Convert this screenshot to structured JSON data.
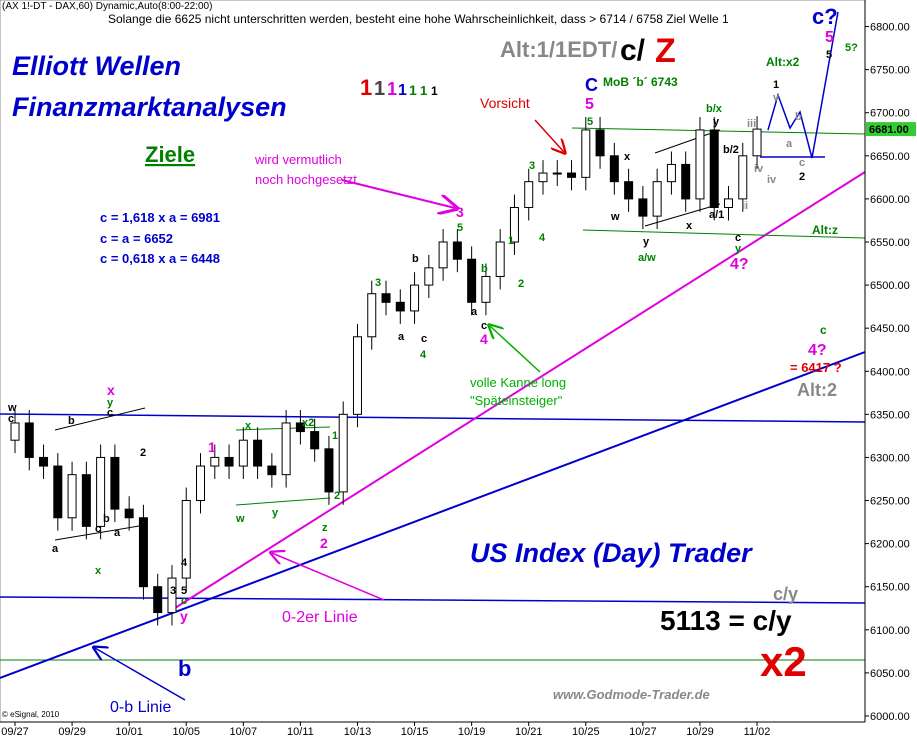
{
  "chart_data": {
    "type": "candlestick",
    "categories": [
      "09/27",
      null,
      null,
      null,
      "09/29",
      null,
      null,
      null,
      "10/01",
      null,
      null,
      null,
      "10/05",
      null,
      null,
      null,
      "10/07",
      null,
      null,
      null,
      "10/11",
      null,
      null,
      null,
      "10/13",
      null,
      null,
      null,
      "10/15",
      null,
      null,
      null,
      "10/19",
      null,
      null,
      null,
      "10/21",
      null,
      null,
      null,
      "10/25",
      null,
      null,
      null,
      "10/27",
      null,
      null,
      null,
      "10/29",
      null,
      null,
      null,
      "11/02"
    ],
    "open": [
      6320,
      6340,
      6300,
      6290,
      6230,
      6280,
      6220,
      6300,
      6240,
      6230,
      6150,
      6120,
      6160,
      6250,
      6290,
      6300,
      6290,
      6320,
      6290,
      6280,
      6340,
      6330,
      6310,
      6260,
      6350,
      6440,
      6490,
      6480,
      6470,
      6500,
      6520,
      6550,
      6530,
      6480,
      6510,
      6550,
      6590,
      6620,
      6630,
      6630,
      6625,
      6680,
      6650,
      6620,
      6600,
      6580,
      6620,
      6640,
      6600,
      6680,
      6590,
      6600,
      6650
    ],
    "high": [
      6355,
      6355,
      6315,
      6305,
      6295,
      6295,
      6315,
      6315,
      6255,
      6245,
      6165,
      6175,
      6265,
      6305,
      6315,
      6315,
      6335,
      6335,
      6305,
      6355,
      6355,
      6345,
      6325,
      6365,
      6455,
      6505,
      6505,
      6495,
      6515,
      6535,
      6565,
      6565,
      6545,
      6525,
      6565,
      6605,
      6635,
      6645,
      6645,
      6645,
      6695,
      6695,
      6665,
      6635,
      6615,
      6635,
      6655,
      6655,
      6695,
      6695,
      6615,
      6665,
      6696
    ],
    "low": [
      6305,
      6285,
      6275,
      6215,
      6215,
      6205,
      6205,
      6225,
      6215,
      6135,
      6105,
      6105,
      6145,
      6235,
      6275,
      6275,
      6275,
      6275,
      6265,
      6265,
      6315,
      6295,
      6245,
      6245,
      6335,
      6425,
      6465,
      6455,
      6455,
      6485,
      6505,
      6515,
      6465,
      6465,
      6495,
      6535,
      6575,
      6605,
      6615,
      6610,
      6610,
      6635,
      6605,
      6585,
      6565,
      6565,
      6605,
      6585,
      6585,
      6575,
      6575,
      6585,
      6635
    ],
    "close": [
      6340,
      6300,
      6290,
      6230,
      6280,
      6220,
      6300,
      6240,
      6230,
      6150,
      6120,
      6160,
      6250,
      6290,
      6300,
      6290,
      6320,
      6290,
      6280,
      6340,
      6330,
      6310,
      6260,
      6350,
      6440,
      6490,
      6480,
      6470,
      6500,
      6520,
      6550,
      6530,
      6480,
      6510,
      6550,
      6590,
      6620,
      6630,
      6630,
      6625,
      6680,
      6650,
      6620,
      6600,
      6580,
      6620,
      6640,
      6600,
      6680,
      6590,
      6600,
      6650,
      6681
    ],
    "ylim": [
      5993,
      6825
    ],
    "yticks": [
      {
        "value": 6000,
        "label": "6000.00"
      },
      {
        "value": 6050,
        "label": "6050.00"
      },
      {
        "value": 6100,
        "label": "6100.00"
      },
      {
        "value": 6150,
        "label": "6150.00"
      },
      {
        "value": 6200,
        "label": "6200.00"
      },
      {
        "value": 6250,
        "label": "6250.00"
      },
      {
        "value": 6300,
        "label": "6300.00"
      },
      {
        "value": 6350,
        "label": "6350.00"
      },
      {
        "value": 6400,
        "label": "6400.00"
      },
      {
        "value": 6450,
        "label": "6450.00"
      },
      {
        "value": 6500,
        "label": "6500.00"
      },
      {
        "value": 6550,
        "label": "6550.00"
      },
      {
        "value": 6600,
        "label": "6600.00"
      },
      {
        "value": 6650,
        "label": "6650.00"
      },
      {
        "value": 6700,
        "label": "6700.00"
      },
      {
        "value": 6750,
        "label": "6750.00"
      },
      {
        "value": 6800,
        "label": "6800.00"
      }
    ],
    "last": {
      "value": 6681,
      "label": "6681.00"
    },
    "up_color": "#ffffff",
    "down_color": "#000000",
    "annotations": [
      "(AX 1!-DT - DAX,60) Dynamic,Auto(8:00-22:00)",
      "Solange die 6625 nicht unterschritten werden, besteht eine hohe Wahrscheinlichkeit, dass > 6714 / 6758 Ziel Welle 1",
      "Elliott Wellen",
      "Finanzmarktanalysen",
      "Ziele",
      "c = 1,618 x a = 6981",
      "c = a = 6652",
      "c = 0,618 x a = 6448",
      "1",
      "1",
      "1",
      "1",
      "1",
      "1",
      "1",
      "Alt:1/1EDT/",
      "c/",
      "Z",
      "MoB ´b´ 6743",
      "Vorsicht",
      "wird vermutlich",
      "noch hochgesetzt",
      "volle Kanne long",
      "\"Späteinsteiger\"",
      "US Index (Day) Trader",
      "c/y",
      "5113 = c/y",
      "x2",
      "0-2er Linie",
      "0-b Linie",
      "www.Godmode-Trader.de",
      "© eSignal, 2010",
      "Alt:z",
      "Alt:x2",
      "Alt:2",
      "= 6417 ?",
      "4?",
      "c",
      "c?",
      "5",
      "5",
      "5?",
      "b",
      "w",
      "c",
      "x",
      "y",
      "c",
      "b",
      "2",
      "a",
      "c",
      "x",
      "b",
      "a",
      "1",
      "x",
      "x2",
      "1",
      "w",
      "y",
      "2",
      "z",
      "2",
      "3",
      "b",
      "a",
      "c",
      "4",
      "3",
      "5",
      "b",
      "a",
      "c",
      "4",
      "1",
      "2",
      "3",
      "4",
      "C",
      "5",
      "5",
      "x",
      "w",
      "y",
      "a/w",
      "x",
      "b/x",
      "y",
      "b/2",
      "a/1",
      "c",
      "y",
      "4?",
      "ii",
      "iii",
      "iv",
      "iv",
      "1",
      "v",
      "b",
      "a",
      "c",
      "2",
      "3",
      "5",
      "c",
      "y",
      "4"
    ]
  }
}
